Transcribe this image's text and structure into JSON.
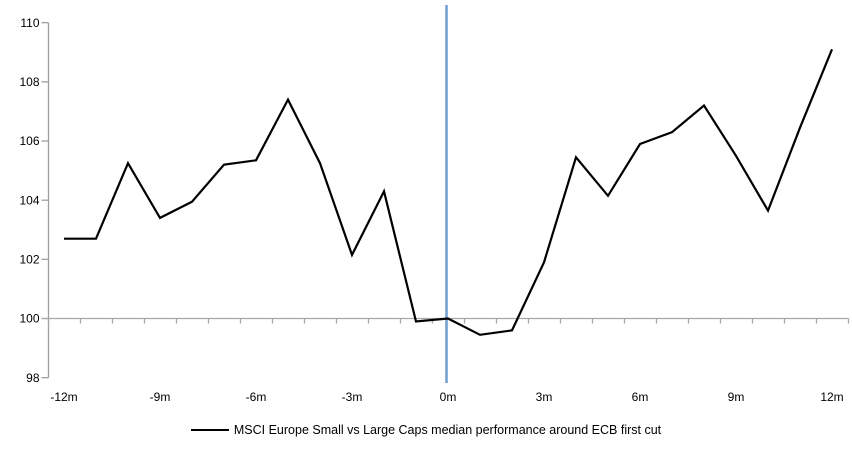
{
  "chart_data": {
    "type": "line",
    "title": "",
    "xlabel": "",
    "ylabel": "",
    "x_months": [
      -12,
      -11,
      -10,
      -9,
      -8,
      -7,
      -6,
      -5,
      -4,
      -3,
      -2,
      -1,
      0,
      1,
      2,
      3,
      4,
      5,
      6,
      7,
      8,
      9,
      10,
      11,
      12
    ],
    "series": [
      {
        "name": "MSCI Europe Small vs Large Caps median performance around ECB first cut",
        "color": "#000000",
        "values": [
          102.7,
          102.7,
          105.25,
          103.4,
          103.95,
          105.2,
          105.35,
          107.4,
          105.25,
          102.15,
          104.3,
          99.9,
          100.0,
          99.45,
          99.6,
          101.9,
          105.45,
          104.15,
          105.9,
          106.3,
          107.2,
          105.5,
          103.65,
          106.45,
          109.1
        ]
      }
    ],
    "ylim": [
      98,
      110
    ],
    "y_tick_step": 2,
    "y_tick_labels": [
      "98",
      "100",
      "102",
      "104",
      "106",
      "108",
      "110"
    ],
    "x_label_step_months": 3,
    "x_tick_labels": [
      "-12m",
      "-9m",
      "-6m",
      "-3m",
      "0m",
      "3m",
      "6m",
      "9m",
      "12m"
    ],
    "grid": "off",
    "legend_position": "bottom-center",
    "reference_lines": {
      "horizontal_baseline_value": 100,
      "vertical_event_month": 0
    },
    "colors": {
      "axis_line": "#A0A0A0",
      "baseline": "#A8A8A8",
      "event_line": "#74A2D3",
      "series_line": "#000000",
      "tick_label": "#000000"
    }
  }
}
